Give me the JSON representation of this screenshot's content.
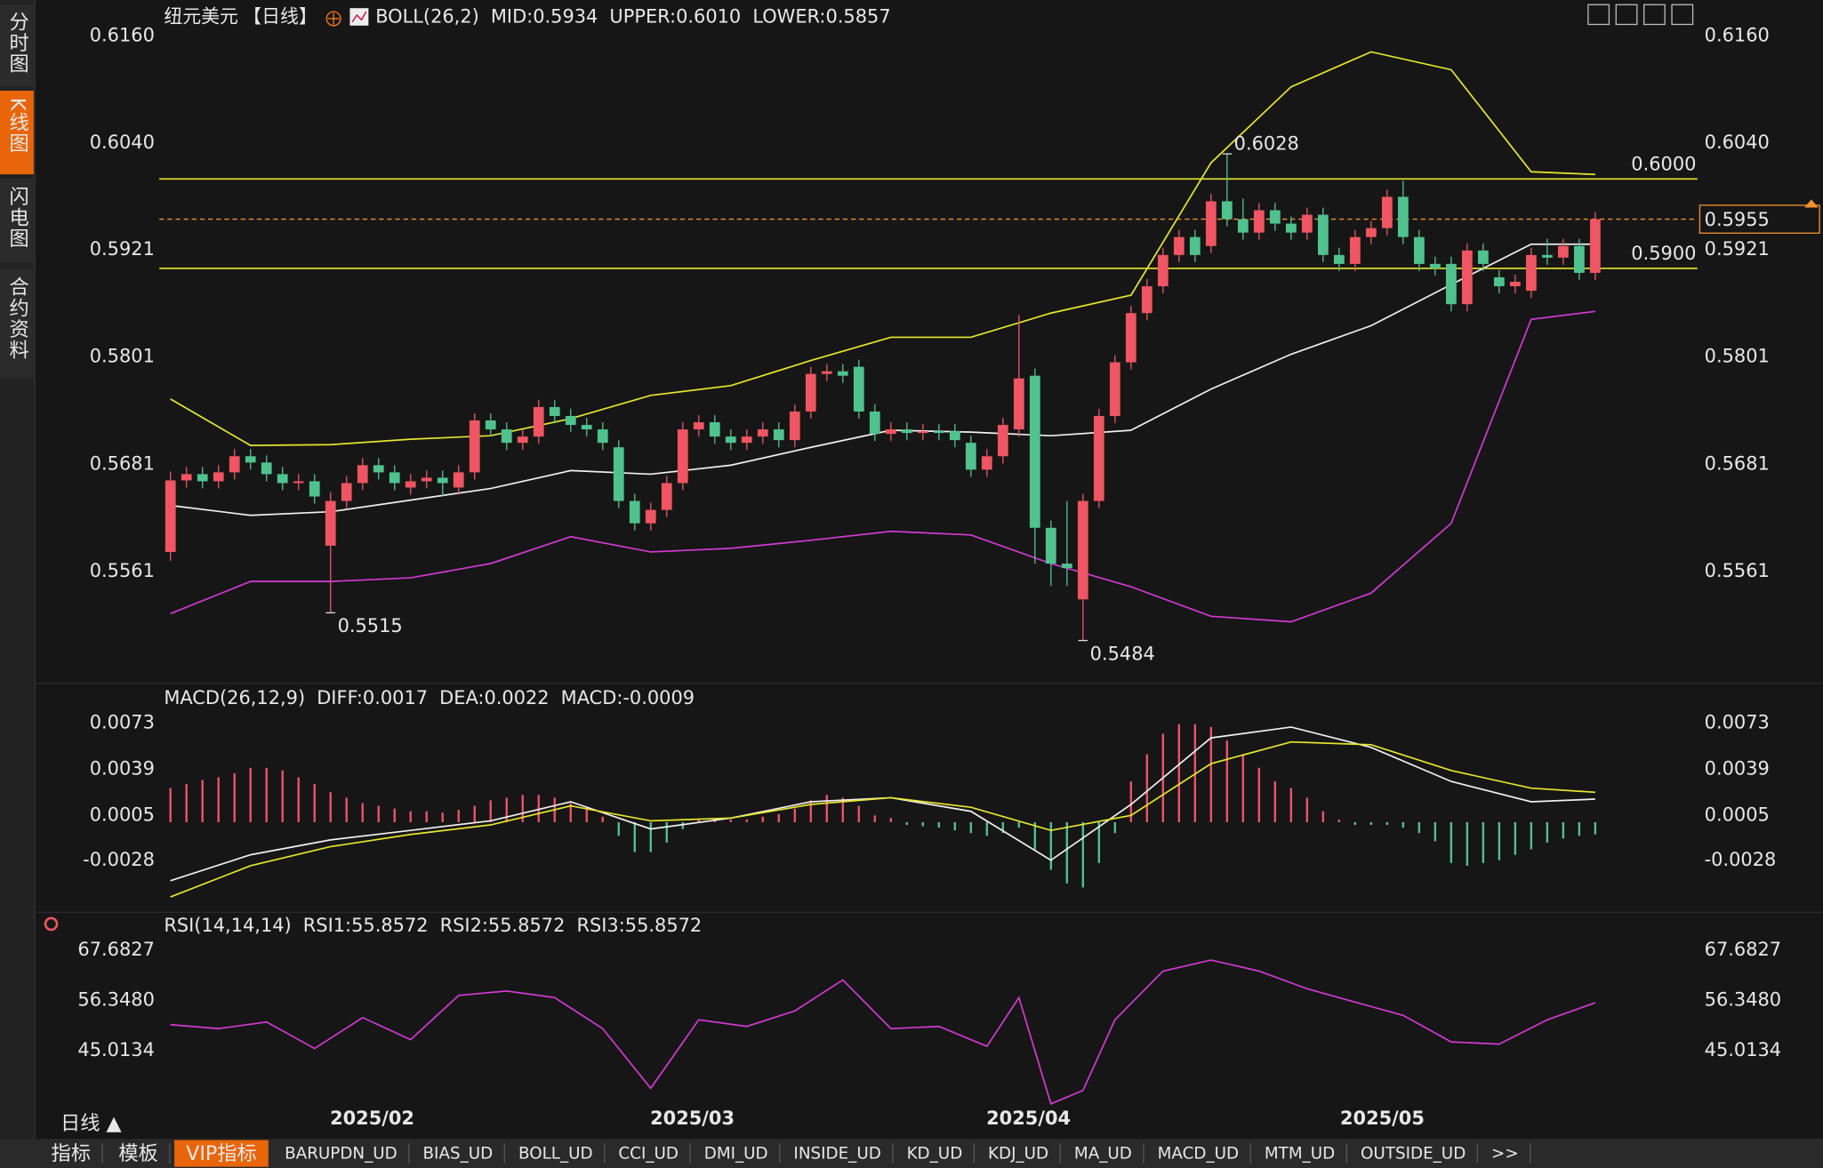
{
  "sidebar": [
    "分时图",
    "K线图",
    "闪电图",
    "合约资料"
  ],
  "sidebar_active": 1,
  "toolbar": {
    "period": "日线 ▲",
    "tabs": [
      "指标",
      "模板",
      "VIP指标",
      "BARUPDN_UD",
      "BIAS_UD",
      "BOLL_UD",
      "CCI_UD",
      "DMI_UD",
      "INSIDE_UD",
      "KD_UD",
      "KDJ_UD",
      "MA_UD",
      "MACD_UD",
      "MTM_UD",
      "OUTSIDE_UD",
      ">>"
    ],
    "active": 2
  },
  "chart_data": [
    {
      "type": "candlestick",
      "symbol": "纽元美元",
      "period": "【日线】",
      "indicator": "BOLL(26,2)",
      "readouts": [
        {
          "text": "MID:0.5934",
          "color": "#ffffff"
        },
        {
          "text": "UPPER:0.6010",
          "color": "#e6e62e"
        },
        {
          "text": "LOWER:0.5857",
          "color": "#d23ad2"
        }
      ],
      "up_color": "#ef5562",
      "down_color": "#4fc28e",
      "xlim": [
        -0.7,
        90.3
      ],
      "ylim": [
        0.544,
        0.6174
      ],
      "yticks": [
        {
          "value": 0.616,
          "label": "0.6160"
        },
        {
          "value": 0.604,
          "label": "0.6040"
        },
        {
          "value": 0.5921,
          "label": "0.5921"
        },
        {
          "value": 0.5801,
          "label": "0.5801"
        },
        {
          "value": 0.5681,
          "label": "0.5681"
        },
        {
          "value": 0.5561,
          "label": "0.5561"
        }
      ],
      "ohlc": [
        [
          0.5583,
          0.5673,
          0.5573,
          0.5663
        ],
        [
          0.5663,
          0.5678,
          0.5655,
          0.567
        ],
        [
          0.567,
          0.5678,
          0.5654,
          0.5662
        ],
        [
          0.5662,
          0.568,
          0.5654,
          0.5672
        ],
        [
          0.5672,
          0.5698,
          0.5664,
          0.569
        ],
        [
          0.569,
          0.5698,
          0.5675,
          0.5683
        ],
        [
          0.5683,
          0.5691,
          0.5662,
          0.567
        ],
        [
          0.567,
          0.5678,
          0.5652,
          0.566
        ],
        [
          0.566,
          0.567,
          0.5652,
          0.5662
        ],
        [
          0.5662,
          0.567,
          0.5637,
          0.5645
        ],
        [
          0.559,
          0.565,
          0.5515,
          0.564
        ],
        [
          0.564,
          0.5668,
          0.5632,
          0.566
        ],
        [
          0.566,
          0.5688,
          0.5652,
          0.568
        ],
        [
          0.568,
          0.5688,
          0.5664,
          0.5672
        ],
        [
          0.5672,
          0.568,
          0.5652,
          0.566
        ],
        [
          0.5655,
          0.567,
          0.5647,
          0.5662
        ],
        [
          0.5662,
          0.5674,
          0.5654,
          0.5666
        ],
        [
          0.5666,
          0.5674,
          0.5645,
          0.566
        ],
        [
          0.5655,
          0.568,
          0.5647,
          0.5672
        ],
        [
          0.5672,
          0.5738,
          0.5664,
          0.573
        ],
        [
          0.573,
          0.5738,
          0.5712,
          0.572
        ],
        [
          0.572,
          0.5728,
          0.5697,
          0.5705
        ],
        [
          0.5705,
          0.572,
          0.5697,
          0.5712
        ],
        [
          0.5712,
          0.5753,
          0.5704,
          0.5745
        ],
        [
          0.5745,
          0.5753,
          0.5727,
          0.5735
        ],
        [
          0.5735,
          0.5743,
          0.5717,
          0.5725
        ],
        [
          0.5725,
          0.5733,
          0.5712,
          0.572
        ],
        [
          0.572,
          0.5728,
          0.5697,
          0.5705
        ],
        [
          0.57,
          0.5708,
          0.5632,
          0.564
        ],
        [
          0.564,
          0.5648,
          0.5607,
          0.5615
        ],
        [
          0.5615,
          0.5638,
          0.5607,
          0.563
        ],
        [
          0.563,
          0.5668,
          0.5622,
          0.566
        ],
        [
          0.566,
          0.5728,
          0.5652,
          0.572
        ],
        [
          0.572,
          0.5736,
          0.5712,
          0.5728
        ],
        [
          0.5728,
          0.5736,
          0.5704,
          0.5712
        ],
        [
          0.5712,
          0.572,
          0.5697,
          0.5705
        ],
        [
          0.5705,
          0.572,
          0.5697,
          0.5712
        ],
        [
          0.5712,
          0.5728,
          0.5704,
          0.572
        ],
        [
          0.572,
          0.5728,
          0.57,
          0.5708
        ],
        [
          0.5708,
          0.5748,
          0.57,
          0.574
        ],
        [
          0.574,
          0.579,
          0.5732,
          0.5782
        ],
        [
          0.5782,
          0.5793,
          0.5774,
          0.5785
        ],
        [
          0.5785,
          0.5793,
          0.5772,
          0.578
        ],
        [
          0.579,
          0.5798,
          0.5732,
          0.574
        ],
        [
          0.574,
          0.5748,
          0.5707,
          0.5715
        ],
        [
          0.5715,
          0.5728,
          0.5707,
          0.572
        ],
        [
          0.572,
          0.5728,
          0.5708,
          0.5716
        ],
        [
          0.5716,
          0.5726,
          0.5708,
          0.5718
        ],
        [
          0.5718,
          0.5726,
          0.5708,
          0.5716
        ],
        [
          0.5718,
          0.5726,
          0.57,
          0.5708
        ],
        [
          0.5705,
          0.5713,
          0.5667,
          0.5675
        ],
        [
          0.5675,
          0.5698,
          0.5667,
          0.569
        ],
        [
          0.569,
          0.5733,
          0.5682,
          0.5725
        ],
        [
          0.572,
          0.5848,
          0.5712,
          0.5777
        ],
        [
          0.578,
          0.5788,
          0.557,
          0.561
        ],
        [
          0.561,
          0.5618,
          0.5545,
          0.557
        ],
        [
          0.557,
          0.564,
          0.5545,
          0.5565
        ],
        [
          0.553,
          0.5648,
          0.5484,
          0.564
        ],
        [
          0.564,
          0.5743,
          0.5632,
          0.5735
        ],
        [
          0.5735,
          0.5803,
          0.5727,
          0.5795
        ],
        [
          0.5795,
          0.5858,
          0.5787,
          0.585
        ],
        [
          0.585,
          0.5888,
          0.5842,
          0.588
        ],
        [
          0.588,
          0.5923,
          0.5872,
          0.5915
        ],
        [
          0.5915,
          0.5943,
          0.5907,
          0.5935
        ],
        [
          0.5935,
          0.5943,
          0.5907,
          0.5915
        ],
        [
          0.5925,
          0.5983,
          0.5917,
          0.5975
        ],
        [
          0.5975,
          0.6028,
          0.5947,
          0.5955
        ],
        [
          0.5955,
          0.5978,
          0.5932,
          0.594
        ],
        [
          0.594,
          0.5973,
          0.5932,
          0.5965
        ],
        [
          0.5965,
          0.5973,
          0.5942,
          0.595
        ],
        [
          0.595,
          0.5958,
          0.5932,
          0.594
        ],
        [
          0.594,
          0.5968,
          0.5932,
          0.596
        ],
        [
          0.596,
          0.5968,
          0.5907,
          0.5915
        ],
        [
          0.5915,
          0.5923,
          0.5897,
          0.5905
        ],
        [
          0.5905,
          0.5943,
          0.5897,
          0.5935
        ],
        [
          0.5935,
          0.5953,
          0.5927,
          0.5945
        ],
        [
          0.5945,
          0.5988,
          0.5937,
          0.598
        ],
        [
          0.598,
          0.5998,
          0.5927,
          0.5935
        ],
        [
          0.5935,
          0.5943,
          0.5897,
          0.5905
        ],
        [
          0.5905,
          0.5913,
          0.5892,
          0.59
        ],
        [
          0.5905,
          0.5913,
          0.5852,
          0.586
        ],
        [
          0.586,
          0.5928,
          0.5852,
          0.592
        ],
        [
          0.592,
          0.5928,
          0.5897,
          0.5905
        ],
        [
          0.589,
          0.5898,
          0.5872,
          0.588
        ],
        [
          0.588,
          0.5893,
          0.5872,
          0.5885
        ],
        [
          0.5875,
          0.5923,
          0.5867,
          0.5915
        ],
        [
          0.5915,
          0.5933,
          0.5904,
          0.5912
        ],
        [
          0.5912,
          0.5933,
          0.5904,
          0.5925
        ],
        [
          0.5925,
          0.5933,
          0.5887,
          0.5895
        ],
        [
          0.5895,
          0.5963,
          0.5887,
          0.5955
        ]
      ],
      "series": [
        {
          "color": "#e6e62e",
          "x": [
            0,
            5,
            10,
            15,
            20,
            25,
            30,
            35,
            40,
            45,
            50,
            55,
            60,
            65,
            70,
            75,
            80,
            85,
            89
          ],
          "values": [
            0.5754,
            0.5702,
            0.5703,
            0.5709,
            0.5713,
            0.5732,
            0.5758,
            0.5769,
            0.5797,
            0.5823,
            0.5823,
            0.585,
            0.587,
            0.6018,
            0.6103,
            0.6142,
            0.6122,
            0.6008,
            0.6005
          ]
        },
        {
          "color": "#f0f0f0",
          "x": [
            0,
            5,
            10,
            15,
            20,
            25,
            30,
            35,
            40,
            45,
            50,
            55,
            60,
            65,
            70,
            75,
            80,
            85,
            89
          ],
          "values": [
            0.5635,
            0.5624,
            0.5628,
            0.5641,
            0.5654,
            0.5674,
            0.567,
            0.568,
            0.57,
            0.5719,
            0.5717,
            0.5713,
            0.5719,
            0.5765,
            0.5804,
            0.5836,
            0.5882,
            0.5927,
            0.5927
          ]
        },
        {
          "color": "#d23ad2",
          "x": [
            0,
            5,
            10,
            15,
            20,
            25,
            30,
            35,
            40,
            45,
            50,
            55,
            60,
            65,
            70,
            75,
            80,
            85,
            89
          ],
          "values": [
            0.5514,
            0.555,
            0.555,
            0.5554,
            0.557,
            0.56,
            0.5583,
            0.5587,
            0.5596,
            0.5606,
            0.5602,
            0.557,
            0.5544,
            0.5511,
            0.5505,
            0.5537,
            0.5615,
            0.5843,
            0.5852
          ]
        }
      ],
      "hlines": [
        {
          "value": 0.6,
          "label": "0.6000",
          "color": "#e6e62e"
        },
        {
          "value": 0.59,
          "label": "0.5900",
          "color": "#e6e62e"
        }
      ],
      "last_price": {
        "value": 0.5955,
        "label": "0.5955",
        "color": "#f0922e"
      },
      "annotations": [
        {
          "text": "0.6028",
          "x": 66,
          "y": 0.6028,
          "color": "#ef5562"
        },
        {
          "text": "0.5515",
          "x": 10,
          "y": 0.5515,
          "color": "#4fc28e"
        },
        {
          "text": "0.5484",
          "x": 57,
          "y": 0.5484,
          "color": "#4fc28e"
        }
      ]
    },
    {
      "type": "macd",
      "title": "MACD(26,12,9)",
      "readouts": [
        {
          "text": "DIFF:0.0017",
          "color": "#ffffff"
        },
        {
          "text": "DEA:0.0022",
          "color": "#e6e62e"
        },
        {
          "text": "MACD:-0.0009",
          "color": "#d23ad2"
        }
      ],
      "up_color": "#ef5562",
      "down_color": "#4fc28e",
      "xlim": [
        -0.7,
        90.3
      ],
      "ylim": [
        -0.0062,
        0.0085
      ],
      "yticks": [
        0.0073,
        0.0039,
        0.0005,
        -0.0028
      ],
      "histogram": [
        0.0025,
        0.0028,
        0.0031,
        0.0033,
        0.0036,
        0.004,
        0.004,
        0.0038,
        0.0033,
        0.0028,
        0.0022,
        0.0018,
        0.0014,
        0.0012,
        0.001,
        0.0008,
        0.0008,
        0.0007,
        0.0009,
        0.0012,
        0.0016,
        0.0018,
        0.002,
        0.002,
        0.0018,
        0.0014,
        0.001,
        0.0004,
        -0.001,
        -0.0022,
        -0.0022,
        -0.0015,
        -0.0005,
        0.0002,
        0.0003,
        0.0002,
        0.0002,
        0.0004,
        0.0006,
        0.001,
        0.0016,
        0.002,
        0.0018,
        0.0012,
        0.0005,
        0.0003,
        -0.0002,
        -0.0003,
        -0.0004,
        -0.0006,
        -0.0008,
        -0.001,
        -0.0008,
        -0.0004,
        -0.002,
        -0.0035,
        -0.0045,
        -0.0048,
        -0.003,
        -0.0008,
        0.003,
        0.005,
        0.0065,
        0.0072,
        0.0072,
        0.007,
        0.006,
        0.005,
        0.004,
        0.003,
        0.0025,
        0.0018,
        0.0008,
        0.0002,
        -0.0002,
        -0.0002,
        -0.0002,
        -0.0004,
        -0.0008,
        -0.0014,
        -0.003,
        -0.0032,
        -0.003,
        -0.0028,
        -0.0024,
        -0.002,
        -0.0015,
        -0.0012,
        -0.001,
        -0.0009
      ],
      "series": [
        {
          "color": "#f0f0f0",
          "x": [
            0,
            5,
            10,
            15,
            20,
            25,
            30,
            35,
            40,
            45,
            50,
            55,
            60,
            65,
            70,
            75,
            80,
            85,
            89
          ],
          "values": [
            -0.0043,
            -0.0024,
            -0.0013,
            -0.0006,
            0.0001,
            0.0015,
            -0.0005,
            0.0003,
            0.0015,
            0.0018,
            0.0008,
            -0.0028,
            0.0013,
            0.0062,
            0.007,
            0.0055,
            0.003,
            0.0015,
            0.0017
          ]
        },
        {
          "color": "#e6e62e",
          "x": [
            0,
            5,
            10,
            15,
            20,
            25,
            30,
            35,
            40,
            45,
            50,
            55,
            60,
            65,
            70,
            75,
            80,
            85,
            89
          ],
          "values": [
            -0.0055,
            -0.0032,
            -0.0018,
            -0.0009,
            -0.0002,
            0.0012,
            0.0001,
            0.0003,
            0.0013,
            0.0018,
            0.0011,
            -0.0006,
            0.0005,
            0.0043,
            0.0059,
            0.0057,
            0.0038,
            0.0025,
            0.0022
          ]
        }
      ]
    },
    {
      "type": "line",
      "title": "RSI(14,14,14)",
      "readouts": [
        {
          "text": "RSI1:55.8572",
          "color": "#ffffff"
        },
        {
          "text": "RSI2:55.8572",
          "color": "#e6e62e"
        },
        {
          "text": "RSI3:55.8572",
          "color": "#d23ad2"
        }
      ],
      "xlim": [
        -0.7,
        90.3
      ],
      "ylim": [
        31.62,
        70.26
      ],
      "yticks": [
        67.6827,
        {
          "value": 56.348,
          "label": "56.3480"
        },
        45.0134
      ],
      "xticks": [
        {
          "value": 12.6,
          "label": "2025/02"
        },
        {
          "value": 32.6,
          "label": "2025/03"
        },
        {
          "value": 53.6,
          "label": "2025/04"
        },
        {
          "value": 75.7,
          "label": "2025/05"
        }
      ],
      "series": [
        {
          "color": "#d23ad2",
          "x": [
            0,
            3,
            6,
            9,
            12,
            15,
            18,
            21,
            24,
            27,
            30,
            33,
            36,
            39,
            42,
            45,
            48,
            51,
            53,
            55,
            57,
            59,
            62,
            65,
            68,
            71,
            74,
            77,
            80,
            83,
            86,
            89
          ],
          "values": [
            50.9,
            50.0,
            51.5,
            45.5,
            52.5,
            47.5,
            57.5,
            58.5,
            57.0,
            50.0,
            36.5,
            52.0,
            50.5,
            54.0,
            61.0,
            50.0,
            50.5,
            46.0,
            57.0,
            33.0,
            36.0,
            52.0,
            63.0,
            65.5,
            63.0,
            59.0,
            56.0,
            53.0,
            47.0,
            46.5,
            52.0,
            55.8572
          ]
        }
      ]
    }
  ]
}
